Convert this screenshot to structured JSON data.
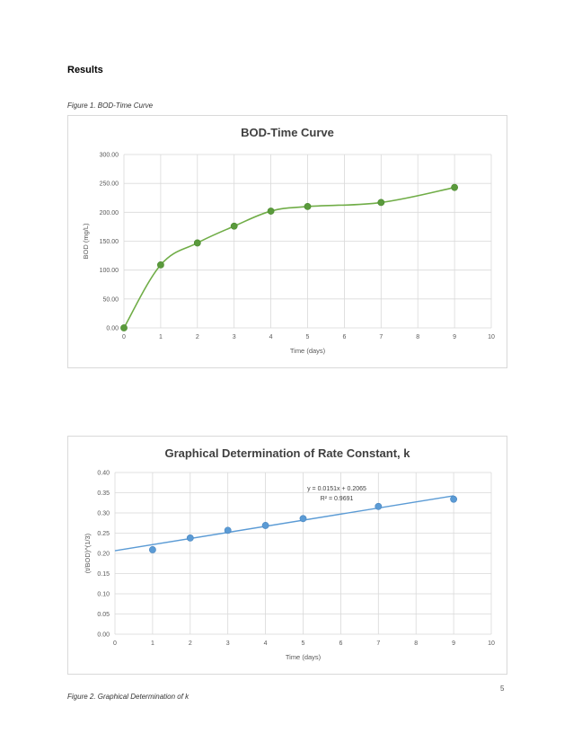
{
  "heading": "Results",
  "figure1_caption": "Figure 1. BOD-Time Curve",
  "figure2_caption": "Figure 2. Graphical Determination of k",
  "page_marker": "5",
  "chart_data": [
    {
      "type": "line",
      "title": "BOD-Time Curve",
      "xlabel": "Time (days)",
      "ylabel": "BOD (mg/L)",
      "xlim": [
        0,
        10
      ],
      "ylim": [
        0,
        300
      ],
      "x_ticks": [
        "0",
        "1",
        "2",
        "3",
        "4",
        "5",
        "6",
        "7",
        "8",
        "9",
        "10"
      ],
      "y_ticks": [
        "0.00",
        "50.00",
        "100.00",
        "150.00",
        "200.00",
        "250.00",
        "300.00"
      ],
      "grid": true,
      "smooth": true,
      "color": "#70ad47",
      "marker_color": "#5a9a3c",
      "x": [
        0,
        1,
        2,
        3,
        4,
        5,
        7,
        9
      ],
      "y": [
        0,
        109,
        147,
        176,
        202,
        210,
        217,
        243
      ]
    },
    {
      "type": "scatter",
      "title": "Graphical Determination of Rate Constant, k",
      "xlabel": "Time (days)",
      "ylabel": "(t/BOD)^(1/3)",
      "xlim": [
        0,
        10
      ],
      "ylim": [
        0,
        0.4
      ],
      "x_ticks": [
        "0",
        "1",
        "2",
        "3",
        "4",
        "5",
        "6",
        "7",
        "8",
        "9",
        "10"
      ],
      "y_ticks": [
        "0.00",
        "0.05",
        "0.10",
        "0.15",
        "0.20",
        "0.25",
        "0.30",
        "0.35",
        "0.40"
      ],
      "grid": true,
      "color": "#5b9bd5",
      "x": [
        1,
        2,
        3,
        4,
        5,
        7,
        9
      ],
      "y": [
        0.209,
        0.238,
        0.257,
        0.269,
        0.286,
        0.316,
        0.334
      ],
      "trendline": {
        "slope": 0.0151,
        "intercept": 0.2065,
        "x_range": [
          0,
          9
        ],
        "equation": "y = 0.0151x + 0.2065",
        "r_squared": "R² = 0.9691"
      }
    }
  ]
}
